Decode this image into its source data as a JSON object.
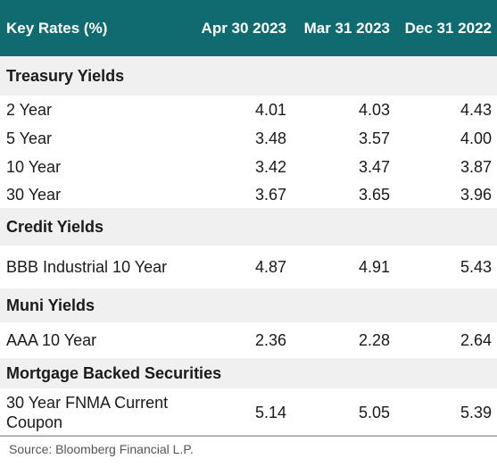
{
  "header": {
    "title": "Key Rates (%)",
    "col1": "Apr 30 2023",
    "col2": "Mar 31 2023",
    "col3": "Dec 31 2022"
  },
  "sections": [
    {
      "title": "Treasury Yields",
      "rows": [
        {
          "label": "2 Year",
          "v1": "4.01",
          "v2": "4.03",
          "v3": "4.43"
        },
        {
          "label": "5 Year",
          "v1": "3.48",
          "v2": "3.57",
          "v3": "4.00"
        },
        {
          "label": "10 Year",
          "v1": "3.42",
          "v2": "3.47",
          "v3": "3.87"
        },
        {
          "label": "30 Year",
          "v1": "3.67",
          "v2": "3.65",
          "v3": "3.96"
        }
      ]
    },
    {
      "title": "Credit Yields",
      "rows": [
        {
          "label": "BBB Industrial 10 Year",
          "v1": "4.87",
          "v2": "4.91",
          "v3": "5.43"
        }
      ]
    },
    {
      "title": "Muni Yields",
      "rows": [
        {
          "label": "AAA 10 Year",
          "v1": "2.36",
          "v2": "2.28",
          "v3": "2.64"
        }
      ]
    },
    {
      "title": "Mortgage Backed Securities",
      "rows": [
        {
          "label": "30 Year FNMA Current Coupon",
          "v1": "5.14",
          "v2": "5.05",
          "v3": "5.39"
        }
      ]
    }
  ],
  "source": "Source: Bloomberg Financial L.P.",
  "colors": {
    "header_bg": "#0f6b70",
    "section_bg": "#f0f0f0"
  }
}
